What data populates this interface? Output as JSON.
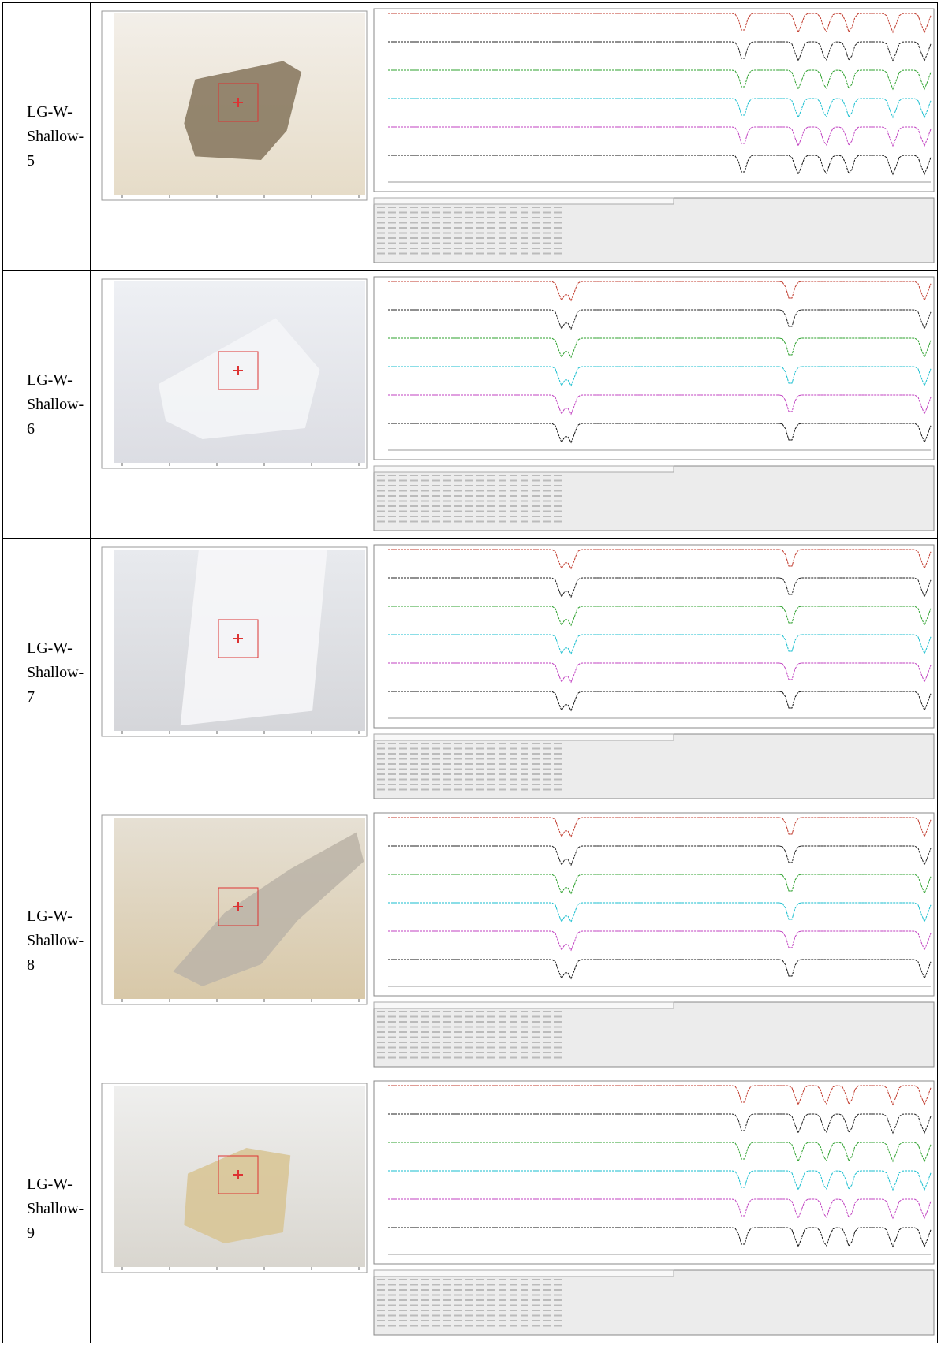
{
  "table": {
    "rows": [
      {
        "label": "LG-W-Shallow-5"
      },
      {
        "label": "LG-W-Shallow-6"
      },
      {
        "label": "LG-W-Shallow-7"
      },
      {
        "label": "LG-W-Shallow-8"
      },
      {
        "label": "LG-W-Shallow-9"
      }
    ]
  }
}
